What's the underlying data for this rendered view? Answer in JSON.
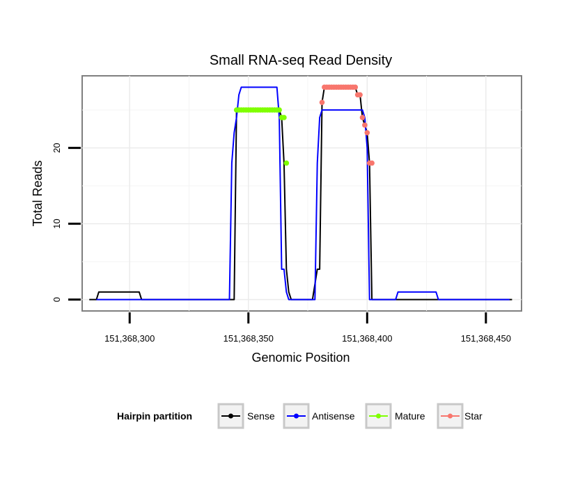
{
  "chart_data": {
    "type": "line",
    "title": "Small RNA-seq Read Density",
    "xlabel": "Genomic Position",
    "ylabel": "Total Reads",
    "xlim": [
      151368280,
      151368465
    ],
    "ylim": [
      -1.5,
      29.5
    ],
    "grid": true,
    "x_ticks": [
      {
        "value": 151368300,
        "label": "151,368,300"
      },
      {
        "value": 151368350,
        "label": "151,368,350"
      },
      {
        "value": 151368400,
        "label": "151,368,400"
      },
      {
        "value": 151368450,
        "label": "151,368,450"
      }
    ],
    "y_ticks": [
      {
        "value": 0,
        "label": "0"
      },
      {
        "value": 10,
        "label": "10"
      },
      {
        "value": 20,
        "label": "20"
      }
    ],
    "legend": {
      "title": "Hairpin partition",
      "position": "bottom",
      "entries": [
        {
          "label": "Sense",
          "color": "#000000"
        },
        {
          "label": "Antisense",
          "color": "#0000ff"
        },
        {
          "label": "Mature",
          "color": "#7fff00"
        },
        {
          "label": "Star",
          "color": "#f8766d"
        }
      ]
    },
    "series": [
      {
        "name": "Sense",
        "kind": "line",
        "color": "#000000",
        "x": [
          151368283,
          151368286,
          151368287,
          151368304,
          151368305,
          151368344,
          151368345,
          151368363,
          151368364,
          151368365,
          151368366,
          151368367,
          151368368,
          151368377,
          151368379,
          151368380,
          151368381,
          151368382,
          151368383,
          151368395,
          151368396,
          151368397,
          151368398,
          151368399,
          151368400,
          151368401,
          151368402,
          151368403,
          151368461
        ],
        "y": [
          0,
          0,
          1,
          1,
          0,
          0,
          25,
          25,
          24,
          18,
          4,
          1,
          0,
          0,
          4,
          4,
          26,
          28,
          28,
          28,
          27,
          27,
          24,
          23,
          22,
          18,
          0,
          0,
          0
        ]
      },
      {
        "name": "Antisense",
        "kind": "line",
        "color": "#0000ff",
        "x": [
          151368286,
          151368342,
          151368343,
          151368344,
          151368345,
          151368346,
          151368347,
          151368348,
          151368362,
          151368363,
          151368364,
          151368365,
          151368366,
          151368367,
          151368378,
          151368379,
          151368380,
          151368381,
          151368382,
          151368383,
          151368398,
          151368399,
          151368400,
          151368401,
          151368402,
          151368411,
          151368412,
          151368413,
          151368429,
          151368430,
          151368460
        ],
        "y": [
          0,
          0,
          18,
          22,
          24,
          27,
          28,
          28,
          28,
          24,
          4,
          4,
          1,
          0,
          0,
          18,
          24,
          25,
          25,
          25,
          25,
          24,
          20,
          0,
          0,
          0,
          0,
          1,
          1,
          0,
          0
        ]
      },
      {
        "name": "Mature",
        "kind": "points",
        "color": "#7fff00",
        "x": [
          151368345,
          151368346,
          151368347,
          151368348,
          151368349,
          151368350,
          151368351,
          151368352,
          151368353,
          151368354,
          151368355,
          151368356,
          151368357,
          151368358,
          151368359,
          151368360,
          151368361,
          151368362,
          151368363,
          151368364,
          151368365,
          151368366
        ],
        "y": [
          25,
          25,
          25,
          25,
          25,
          25,
          25,
          25,
          25,
          25,
          25,
          25,
          25,
          25,
          25,
          25,
          25,
          25,
          25,
          24,
          24,
          18
        ]
      },
      {
        "name": "Star",
        "kind": "points",
        "color": "#f8766d",
        "x": [
          151368381,
          151368382,
          151368383,
          151368384,
          151368385,
          151368386,
          151368387,
          151368388,
          151368389,
          151368390,
          151368391,
          151368392,
          151368393,
          151368394,
          151368395,
          151368396,
          151368397,
          151368398,
          151368399,
          151368400,
          151368401,
          151368402
        ],
        "y": [
          26,
          28,
          28,
          28,
          28,
          28,
          28,
          28,
          28,
          28,
          28,
          28,
          28,
          28,
          28,
          27,
          27,
          24,
          23,
          22,
          18,
          18
        ]
      }
    ]
  }
}
